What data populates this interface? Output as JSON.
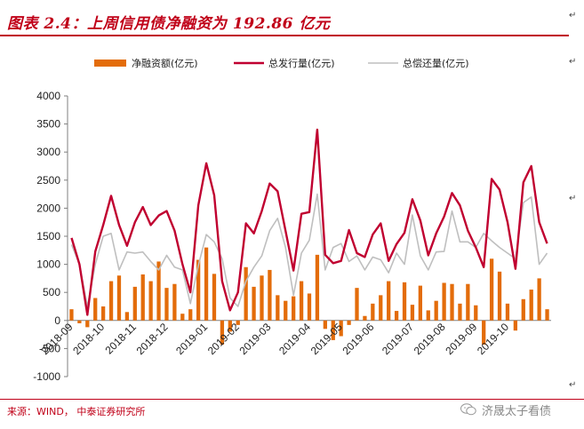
{
  "header": {
    "title": "图表 2.4：上周信用债净融资为 192.86 亿元"
  },
  "footer": {
    "source": "来源：WIND， 中泰证券研究所",
    "watermark": "济晟太子看债"
  },
  "colors": {
    "net_financing": "#e36c0a",
    "issuance": "#c00030",
    "repayment": "#bfbfbf",
    "accent": "#c00018"
  },
  "chart_data": {
    "type": "bar",
    "legend_position": "top",
    "grid": false,
    "ylim": [
      -1000,
      4000
    ],
    "yticks": [
      -1000,
      -500,
      0,
      500,
      1000,
      1500,
      2000,
      2500,
      3000,
      3500,
      4000
    ],
    "xticks": [
      "2018-09",
      "2018-10",
      "2018-11",
      "2018-12",
      "2019-01",
      "2019-02",
      "2019-03",
      "2019-04",
      "2019-05",
      "2019-06",
      "2019-07",
      "2019-08",
      "2019-09",
      "2019-10"
    ],
    "xtick_index": [
      0,
      4,
      8,
      12,
      17,
      21,
      25,
      30,
      34,
      38,
      43,
      47,
      51,
      55
    ],
    "series": [
      {
        "name": "净融资额(亿元)",
        "kind": "bar",
        "values": [
          200,
          -50,
          -120,
          400,
          250,
          700,
          800,
          150,
          600,
          820,
          700,
          1050,
          580,
          650,
          120,
          200,
          1080,
          1300,
          830,
          -430,
          -200,
          -80,
          950,
          600,
          800,
          900,
          450,
          350,
          430,
          700,
          480,
          1170,
          -150,
          -350,
          -280,
          -80,
          580,
          80,
          300,
          450,
          700,
          170,
          680,
          280,
          620,
          180,
          350,
          670,
          650,
          300,
          650,
          270,
          -430,
          1100,
          870,
          300,
          -180,
          380,
          550,
          750,
          200
        ]
      },
      {
        "name": "总发行量(亿元)",
        "kind": "line",
        "values": [
          1470,
          1000,
          100,
          1230,
          1700,
          2220,
          1700,
          1330,
          1750,
          2020,
          1700,
          1870,
          1950,
          1600,
          1000,
          500,
          2050,
          2800,
          2230,
          700,
          180,
          500,
          1730,
          1550,
          1950,
          2440,
          2300,
          1600,
          890,
          1900,
          1930,
          3400,
          1170,
          1020,
          1060,
          1610,
          1200,
          1130,
          1530,
          1730,
          1060,
          1360,
          1560,
          2160,
          1780,
          1160,
          1550,
          1850,
          2270,
          2050,
          1600,
          1300,
          950,
          2520,
          2330,
          1750,
          920,
          2460,
          2750,
          1750,
          1370
        ]
      },
      {
        "name": "总偿还量(亿元)",
        "kind": "line",
        "values": [
          1350,
          1000,
          250,
          1000,
          1500,
          1550,
          900,
          1220,
          1200,
          1220,
          1050,
          900,
          1160,
          950,
          900,
          300,
          980,
          1530,
          1400,
          1100,
          400,
          250,
          700,
          950,
          1150,
          1600,
          1820,
          1300,
          450,
          1200,
          1430,
          2250,
          900,
          1300,
          1370,
          1050,
          1150,
          900,
          1130,
          1080,
          850,
          1200,
          1000,
          1880,
          1150,
          900,
          1220,
          1230,
          1950,
          1400,
          1400,
          1300,
          1550,
          1420,
          1300,
          1200,
          1100,
          2100,
          2200,
          1000,
          1200
        ]
      }
    ]
  }
}
